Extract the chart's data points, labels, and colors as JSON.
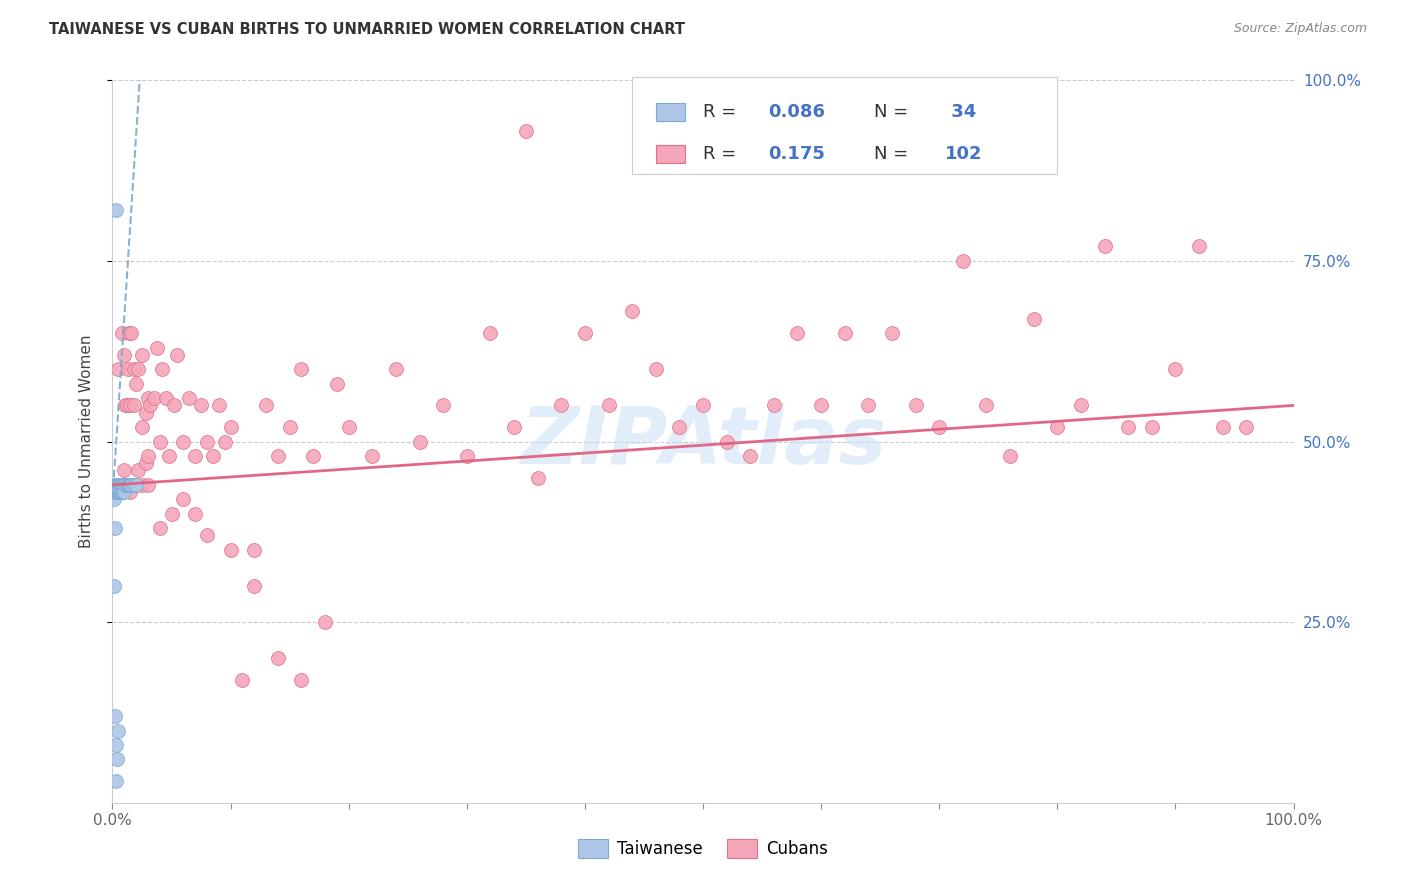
{
  "title": "TAIWANESE VS CUBAN BIRTHS TO UNMARRIED WOMEN CORRELATION CHART",
  "source": "Source: ZipAtlas.com",
  "ylabel": "Births to Unmarried Women",
  "taiwanese_color": "#aec6e8",
  "taiwanese_edge": "#7aaad0",
  "cuban_color": "#f4a7b9",
  "cuban_edge": "#e07090",
  "trend_taiwanese_color": "#7aaad0",
  "trend_cuban_color": "#e06080",
  "background_color": "#ffffff",
  "grid_color": "#cccccc",
  "title_color": "#333333",
  "source_color": "#888888",
  "right_axis_color": "#4472c4",
  "legend_text_color": "#333333",
  "legend_value_color": "#4472c4",
  "watermark_color": "#c5ddf5",
  "taiwanese_x": [
    0.001,
    0.001,
    0.002,
    0.002,
    0.002,
    0.003,
    0.003,
    0.003,
    0.003,
    0.004,
    0.004,
    0.004,
    0.005,
    0.005,
    0.005,
    0.006,
    0.006,
    0.007,
    0.007,
    0.008,
    0.008,
    0.009,
    0.009,
    0.01,
    0.01,
    0.011,
    0.012,
    0.013,
    0.014,
    0.015,
    0.016,
    0.018,
    0.02,
    0.003
  ],
  "taiwanese_y": [
    0.42,
    0.3,
    0.44,
    0.38,
    0.12,
    0.44,
    0.43,
    0.08,
    0.03,
    0.44,
    0.43,
    0.06,
    0.44,
    0.43,
    0.1,
    0.44,
    0.43,
    0.44,
    0.43,
    0.44,
    0.43,
    0.44,
    0.43,
    0.44,
    0.43,
    0.44,
    0.44,
    0.44,
    0.44,
    0.44,
    0.44,
    0.44,
    0.44,
    0.82
  ],
  "cuban_x": [
    0.005,
    0.007,
    0.008,
    0.01,
    0.011,
    0.012,
    0.013,
    0.014,
    0.015,
    0.016,
    0.018,
    0.018,
    0.02,
    0.022,
    0.022,
    0.025,
    0.025,
    0.028,
    0.028,
    0.03,
    0.03,
    0.032,
    0.035,
    0.038,
    0.04,
    0.042,
    0.045,
    0.048,
    0.052,
    0.055,
    0.06,
    0.065,
    0.07,
    0.075,
    0.08,
    0.085,
    0.09,
    0.095,
    0.1,
    0.11,
    0.12,
    0.13,
    0.14,
    0.15,
    0.16,
    0.17,
    0.19,
    0.2,
    0.22,
    0.24,
    0.26,
    0.28,
    0.3,
    0.32,
    0.34,
    0.36,
    0.38,
    0.4,
    0.42,
    0.44,
    0.46,
    0.48,
    0.5,
    0.52,
    0.54,
    0.56,
    0.58,
    0.6,
    0.62,
    0.64,
    0.66,
    0.68,
    0.7,
    0.72,
    0.74,
    0.76,
    0.78,
    0.8,
    0.82,
    0.84,
    0.86,
    0.88,
    0.9,
    0.92,
    0.94,
    0.96,
    0.01,
    0.015,
    0.02,
    0.025,
    0.03,
    0.04,
    0.05,
    0.06,
    0.07,
    0.08,
    0.1,
    0.12,
    0.14,
    0.16,
    0.18,
    0.35
  ],
  "cuban_y": [
    0.6,
    0.44,
    0.65,
    0.62,
    0.55,
    0.55,
    0.6,
    0.65,
    0.55,
    0.65,
    0.6,
    0.55,
    0.58,
    0.6,
    0.46,
    0.62,
    0.52,
    0.54,
    0.47,
    0.56,
    0.48,
    0.55,
    0.56,
    0.63,
    0.5,
    0.6,
    0.56,
    0.48,
    0.55,
    0.62,
    0.5,
    0.56,
    0.48,
    0.55,
    0.5,
    0.48,
    0.55,
    0.5,
    0.52,
    0.17,
    0.35,
    0.55,
    0.48,
    0.52,
    0.6,
    0.48,
    0.58,
    0.52,
    0.48,
    0.6,
    0.5,
    0.55,
    0.48,
    0.65,
    0.52,
    0.45,
    0.55,
    0.65,
    0.55,
    0.68,
    0.6,
    0.52,
    0.55,
    0.5,
    0.48,
    0.55,
    0.65,
    0.55,
    0.65,
    0.55,
    0.65,
    0.55,
    0.52,
    0.75,
    0.55,
    0.48,
    0.67,
    0.52,
    0.55,
    0.77,
    0.52,
    0.52,
    0.6,
    0.77,
    0.52,
    0.52,
    0.46,
    0.43,
    0.44,
    0.44,
    0.44,
    0.38,
    0.4,
    0.42,
    0.4,
    0.37,
    0.35,
    0.3,
    0.2,
    0.17,
    0.25,
    0.93
  ],
  "xlim": [
    0.0,
    1.0
  ],
  "ylim": [
    0.0,
    1.0
  ],
  "yticks": [
    0.25,
    0.5,
    0.75,
    1.0
  ],
  "ytick_labels": [
    "25.0%",
    "50.0%",
    "75.0%",
    "100.0%"
  ],
  "marker_size": 100
}
